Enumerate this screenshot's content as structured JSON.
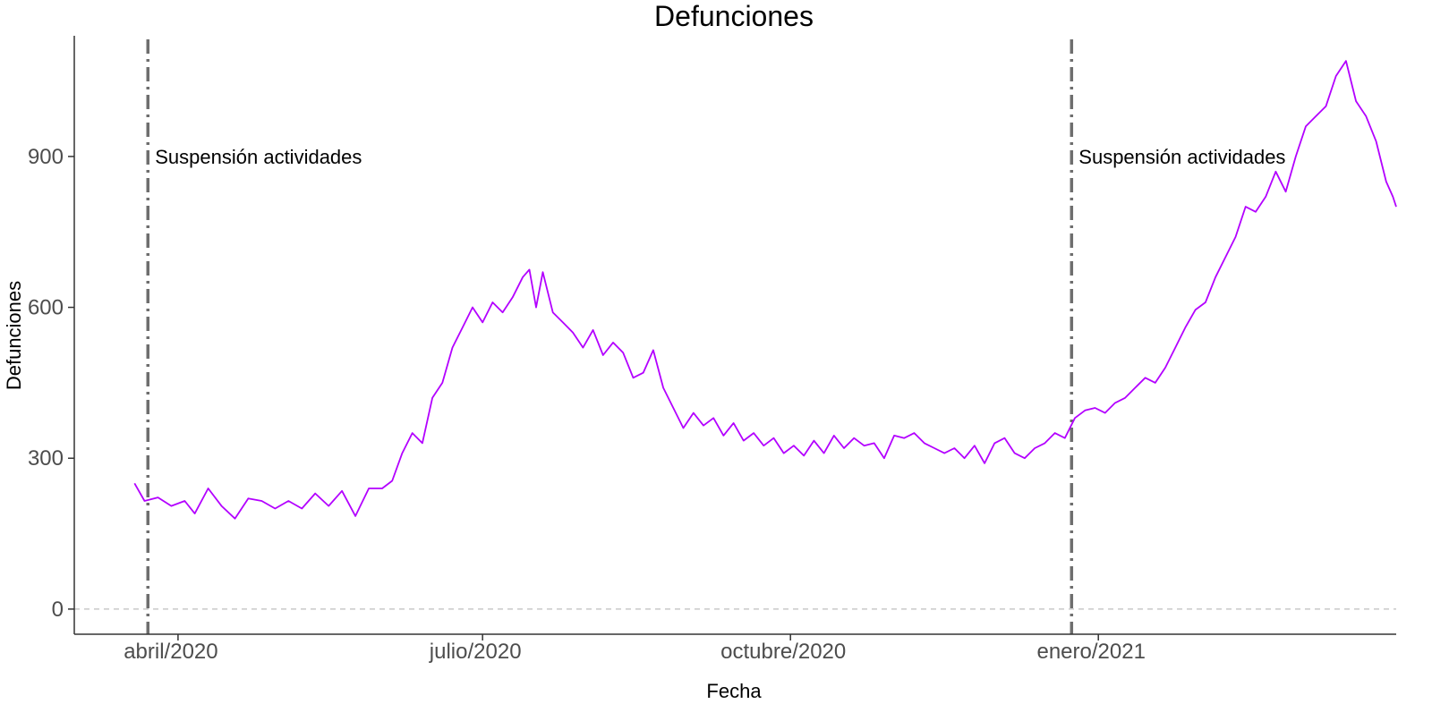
{
  "chart_data": {
    "type": "line",
    "title": "Defunciones",
    "xlabel": "Fecha",
    "ylabel": "Defunciones",
    "x_range": [
      "2020-03-01",
      "2021-03-31"
    ],
    "ylim": [
      -50,
      1140
    ],
    "y_ticks": [
      0,
      300,
      600,
      900
    ],
    "y_tick_labels": [
      "0",
      "300",
      "600",
      "900"
    ],
    "x_ticks": [
      {
        "date": "2020-04-01",
        "label": "abril/2020"
      },
      {
        "date": "2020-07-01",
        "label": "julio/2020"
      },
      {
        "date": "2020-10-01",
        "label": "octubre/2020"
      },
      {
        "date": "2021-01-01",
        "label": "enero/2021"
      }
    ],
    "grid": false,
    "reference_hline": {
      "y": 0,
      "style": "dashed",
      "color": "#bdbdbd"
    },
    "vlines": [
      {
        "date": "2020-03-23",
        "label": "Suspensión actividades",
        "color": "#6e6e6e",
        "style": "dashdot"
      },
      {
        "date": "2020-12-24",
        "label": "Suspensión actividades",
        "color": "#6e6e6e",
        "style": "dashdot"
      }
    ],
    "series": [
      {
        "color": "#b300ff",
        "points": [
          [
            "2020-03-19",
            250
          ],
          [
            "2020-03-22",
            215
          ],
          [
            "2020-03-26",
            222
          ],
          [
            "2020-03-30",
            205
          ],
          [
            "2020-04-03",
            215
          ],
          [
            "2020-04-06",
            190
          ],
          [
            "2020-04-10",
            240
          ],
          [
            "2020-04-14",
            205
          ],
          [
            "2020-04-18",
            180
          ],
          [
            "2020-04-22",
            220
          ],
          [
            "2020-04-26",
            215
          ],
          [
            "2020-04-30",
            200
          ],
          [
            "2020-05-04",
            215
          ],
          [
            "2020-05-08",
            200
          ],
          [
            "2020-05-12",
            230
          ],
          [
            "2020-05-16",
            205
          ],
          [
            "2020-05-20",
            235
          ],
          [
            "2020-05-24",
            185
          ],
          [
            "2020-05-28",
            240
          ],
          [
            "2020-06-01",
            240
          ],
          [
            "2020-06-04",
            255
          ],
          [
            "2020-06-07",
            310
          ],
          [
            "2020-06-10",
            350
          ],
          [
            "2020-06-13",
            330
          ],
          [
            "2020-06-16",
            420
          ],
          [
            "2020-06-19",
            450
          ],
          [
            "2020-06-22",
            520
          ],
          [
            "2020-06-25",
            560
          ],
          [
            "2020-06-28",
            600
          ],
          [
            "2020-07-01",
            570
          ],
          [
            "2020-07-04",
            610
          ],
          [
            "2020-07-07",
            590
          ],
          [
            "2020-07-10",
            620
          ],
          [
            "2020-07-13",
            660
          ],
          [
            "2020-07-15",
            675
          ],
          [
            "2020-07-17",
            600
          ],
          [
            "2020-07-19",
            670
          ],
          [
            "2020-07-22",
            590
          ],
          [
            "2020-07-25",
            570
          ],
          [
            "2020-07-28",
            550
          ],
          [
            "2020-07-31",
            520
          ],
          [
            "2020-08-03",
            555
          ],
          [
            "2020-08-06",
            505
          ],
          [
            "2020-08-09",
            530
          ],
          [
            "2020-08-12",
            510
          ],
          [
            "2020-08-15",
            460
          ],
          [
            "2020-08-18",
            470
          ],
          [
            "2020-08-21",
            515
          ],
          [
            "2020-08-24",
            440
          ],
          [
            "2020-08-27",
            400
          ],
          [
            "2020-08-30",
            360
          ],
          [
            "2020-09-02",
            390
          ],
          [
            "2020-09-05",
            365
          ],
          [
            "2020-09-08",
            380
          ],
          [
            "2020-09-11",
            345
          ],
          [
            "2020-09-14",
            370
          ],
          [
            "2020-09-17",
            335
          ],
          [
            "2020-09-20",
            350
          ],
          [
            "2020-09-23",
            325
          ],
          [
            "2020-09-26",
            340
          ],
          [
            "2020-09-29",
            310
          ],
          [
            "2020-10-02",
            325
          ],
          [
            "2020-10-05",
            305
          ],
          [
            "2020-10-08",
            335
          ],
          [
            "2020-10-11",
            310
          ],
          [
            "2020-10-14",
            345
          ],
          [
            "2020-10-17",
            320
          ],
          [
            "2020-10-20",
            340
          ],
          [
            "2020-10-23",
            325
          ],
          [
            "2020-10-26",
            330
          ],
          [
            "2020-10-29",
            300
          ],
          [
            "2020-11-01",
            345
          ],
          [
            "2020-11-04",
            340
          ],
          [
            "2020-11-07",
            350
          ],
          [
            "2020-11-10",
            330
          ],
          [
            "2020-11-13",
            320
          ],
          [
            "2020-11-16",
            310
          ],
          [
            "2020-11-19",
            320
          ],
          [
            "2020-11-22",
            300
          ],
          [
            "2020-11-25",
            325
          ],
          [
            "2020-11-28",
            290
          ],
          [
            "2020-12-01",
            330
          ],
          [
            "2020-12-04",
            340
          ],
          [
            "2020-12-07",
            310
          ],
          [
            "2020-12-10",
            300
          ],
          [
            "2020-12-13",
            320
          ],
          [
            "2020-12-16",
            330
          ],
          [
            "2020-12-19",
            350
          ],
          [
            "2020-12-22",
            340
          ],
          [
            "2020-12-25",
            380
          ],
          [
            "2020-12-28",
            395
          ],
          [
            "2020-12-31",
            400
          ],
          [
            "2021-01-03",
            390
          ],
          [
            "2021-01-06",
            410
          ],
          [
            "2021-01-09",
            420
          ],
          [
            "2021-01-12",
            440
          ],
          [
            "2021-01-15",
            460
          ],
          [
            "2021-01-18",
            450
          ],
          [
            "2021-01-21",
            480
          ],
          [
            "2021-01-24",
            520
          ],
          [
            "2021-01-27",
            560
          ],
          [
            "2021-01-30",
            595
          ],
          [
            "2021-02-02",
            610
          ],
          [
            "2021-02-05",
            660
          ],
          [
            "2021-02-08",
            700
          ],
          [
            "2021-02-11",
            740
          ],
          [
            "2021-02-14",
            800
          ],
          [
            "2021-02-17",
            790
          ],
          [
            "2021-02-20",
            820
          ],
          [
            "2021-02-23",
            870
          ],
          [
            "2021-02-26",
            830
          ],
          [
            "2021-03-01",
            900
          ],
          [
            "2021-03-04",
            960
          ],
          [
            "2021-03-07",
            980
          ],
          [
            "2021-03-10",
            1000
          ],
          [
            "2021-03-13",
            1060
          ],
          [
            "2021-03-16",
            1090
          ],
          [
            "2021-03-19",
            1010
          ],
          [
            "2021-03-22",
            980
          ],
          [
            "2021-03-25",
            930
          ],
          [
            "2021-03-28",
            850
          ],
          [
            "2021-03-30",
            820
          ],
          [
            "2021-03-31",
            800
          ]
        ]
      }
    ]
  }
}
